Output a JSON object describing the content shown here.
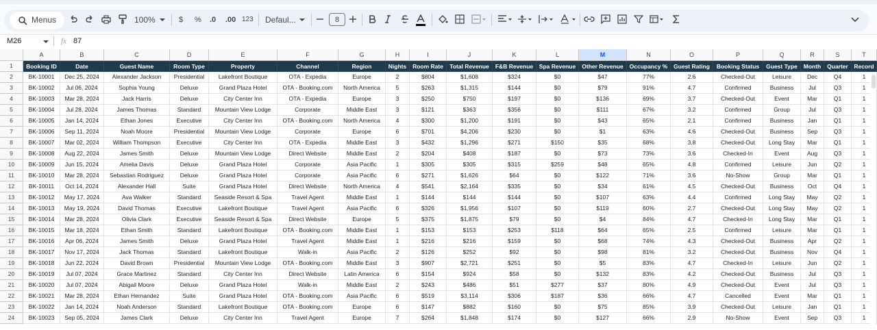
{
  "toolbar": {
    "search": "Menus",
    "zoom": "100%",
    "currency": "$",
    "percent": "%",
    "decrease_decimals": ".0",
    "increase_decimals": ".00",
    "number_format": "123",
    "font": "Defaul...",
    "font_size": "8"
  },
  "formula_bar": {
    "cell_ref": "M26",
    "fx": "fx",
    "formula": "87"
  },
  "sheet": {
    "selected_column": "M",
    "columns": [
      "A",
      "B",
      "C",
      "D",
      "E",
      "F",
      "G",
      "H",
      "I",
      "J",
      "K",
      "L",
      "M",
      "N",
      "O",
      "P",
      "Q",
      "R",
      "S",
      "T"
    ],
    "row_numbers": [
      "1",
      "2",
      "3",
      "4",
      "5",
      "6",
      "7",
      "8",
      "9",
      "10",
      "11",
      "12",
      "13",
      "14",
      "15",
      "16",
      "17",
      "18",
      "19",
      "20",
      "21",
      "22",
      "23",
      "24"
    ],
    "header": [
      "Booking ID",
      "Date",
      "Guest Name",
      "Room Type",
      "Property",
      "Channel",
      "Region",
      "Nights",
      "Room Rate",
      "Total Revenue",
      "F&B Revenue",
      "Spa Revenue",
      "Other Revenue",
      "Occupancy %",
      "Guest Rating",
      "Booking Status",
      "Guest Type",
      "Month",
      "Quarter",
      "Record"
    ],
    "rows": [
      [
        "BK-10001",
        "Dec 25, 2024",
        "Alexander Jackson",
        "Presidential",
        "Lakefront Boutique",
        "OTA - Expedia",
        "Europe",
        "2",
        "$804",
        "$1,608",
        "$324",
        "$0",
        "$47",
        "77%",
        "2.6",
        "Checked-Out",
        "Leisure",
        "Dec",
        "Q4",
        "1"
      ],
      [
        "BK-10002",
        "Jul 06, 2024",
        "Sophia Young",
        "Deluxe",
        "Grand Plaza Hotel",
        "OTA - Booking.com",
        "North America",
        "5",
        "$263",
        "$1,315",
        "$144",
        "$0",
        "$79",
        "91%",
        "4.7",
        "Confirmed",
        "Business",
        "Jul",
        "Q3",
        "1"
      ],
      [
        "BK-10003",
        "Mar 28, 2024",
        "Jack Harris",
        "Deluxe",
        "City Center Inn",
        "OTA - Expedia",
        "Europe",
        "3",
        "$250",
        "$750",
        "$197",
        "$0",
        "$136",
        "69%",
        "3.7",
        "Checked-Out",
        "Event",
        "Mar",
        "Q1",
        "1"
      ],
      [
        "BK-10004",
        "Jul 28, 2024",
        "James Thomas",
        "Standard",
        "Mountain View Lodge",
        "Corporate",
        "Middle East",
        "3",
        "$121",
        "$363",
        "$356",
        "$0",
        "$111",
        "67%",
        "3.2",
        "Confirmed",
        "Group",
        "Jul",
        "Q3",
        "1"
      ],
      [
        "BK-10005",
        "Jan 14, 2024",
        "Ethan Jones",
        "Executive",
        "City Center Inn",
        "OTA - Booking.com",
        "North America",
        "4",
        "$300",
        "$1,200",
        "$191",
        "$0",
        "$43",
        "65%",
        "2.1",
        "Confirmed",
        "Business",
        "Jan",
        "Q1",
        "1"
      ],
      [
        "BK-10006",
        "Sep 11, 2024",
        "Noah Moore",
        "Presidential",
        "Mountain View Lodge",
        "Corporate",
        "Europe",
        "6",
        "$701",
        "$4,206",
        "$230",
        "$0",
        "$1",
        "63%",
        "4.6",
        "Checked-Out",
        "Business",
        "Sep",
        "Q3",
        "1"
      ],
      [
        "BK-10007",
        "Mar 02, 2024",
        "William Thompson",
        "Executive",
        "City Center Inn",
        "OTA - Expedia",
        "Middle East",
        "3",
        "$432",
        "$1,296",
        "$271",
        "$150",
        "$35",
        "68%",
        "3.8",
        "Checked-Out",
        "Long Stay",
        "Mar",
        "Q1",
        "1"
      ],
      [
        "BK-10008",
        "Aug 22, 2024",
        "James Smith",
        "Deluxe",
        "Mountain View Lodge",
        "Direct Website",
        "Middle East",
        "2",
        "$204",
        "$408",
        "$187",
        "$0",
        "$73",
        "73%",
        "3.6",
        "Checked-In",
        "Event",
        "Aug",
        "Q3",
        "1"
      ],
      [
        "BK-10009",
        "Jun 15, 2024",
        "Amelia Davis",
        "Deluxe",
        "Grand Plaza Hotel",
        "Corporate",
        "Asia Pacific",
        "1",
        "$305",
        "$305",
        "$315",
        "$259",
        "$48",
        "65%",
        "4.8",
        "Confirmed",
        "Leisure",
        "Jun",
        "Q2",
        "1"
      ],
      [
        "BK-10010",
        "Mar 28, 2024",
        "Sebastian Rodriguez",
        "Deluxe",
        "Grand Plaza Hotel",
        "Corporate",
        "Asia Pacific",
        "6",
        "$271",
        "$1,626",
        "$64",
        "$0",
        "$122",
        "71%",
        "3.6",
        "No-Show",
        "Group",
        "Mar",
        "Q1",
        "1"
      ],
      [
        "BK-10011",
        "Oct 14, 2024",
        "Alexander Hall",
        "Suite",
        "Grand Plaza Hotel",
        "Direct Website",
        "North America",
        "4",
        "$541",
        "$2,164",
        "$335",
        "$0",
        "$34",
        "61%",
        "4.5",
        "Checked-Out",
        "Business",
        "Oct",
        "Q4",
        "1"
      ],
      [
        "BK-10012",
        "May 17, 2024",
        "Ava Walker",
        "Standard",
        "Seaside Resort & Spa",
        "Travel Agent",
        "Middle East",
        "1",
        "$144",
        "$144",
        "$144",
        "$0",
        "$107",
        "63%",
        "4.4",
        "Confirmed",
        "Long Stay",
        "May",
        "Q2",
        "1"
      ],
      [
        "BK-10013",
        "May 19, 2024",
        "David Thomas",
        "Executive",
        "Lakefront Boutique",
        "Travel Agent",
        "Asia Pacific",
        "6",
        "$326",
        "$1,956",
        "$107",
        "$0",
        "$119",
        "60%",
        "2.7",
        "Checked-Out",
        "Long Stay",
        "May",
        "Q2",
        "1"
      ],
      [
        "BK-10014",
        "Mar 28, 2024",
        "Olivia Clark",
        "Executive",
        "Seaside Resort & Spa",
        "Direct Website",
        "Europe",
        "5",
        "$375",
        "$1,875",
        "$79",
        "$0",
        "$4",
        "84%",
        "4.7",
        "Checked-In",
        "Long Stay",
        "Mar",
        "Q1",
        "1"
      ],
      [
        "BK-10015",
        "Mar 18, 2024",
        "Ethan Smith",
        "Standard",
        "Lakefront Boutique",
        "OTA - Booking.com",
        "Middle East",
        "1",
        "$153",
        "$153",
        "$253",
        "$118",
        "$64",
        "65%",
        "2.5",
        "Confirmed",
        "Leisure",
        "Mar",
        "Q1",
        "1"
      ],
      [
        "BK-10016",
        "Apr 06, 2024",
        "James Smith",
        "Deluxe",
        "Grand Plaza Hotel",
        "Travel Agent",
        "Middle East",
        "1",
        "$216",
        "$216",
        "$159",
        "$0",
        "$68",
        "74%",
        "4.3",
        "Checked-Out",
        "Business",
        "Apr",
        "Q2",
        "1"
      ],
      [
        "BK-10017",
        "Nov 17, 2024",
        "Jack Thomas",
        "Standard",
        "Lakefront Boutique",
        "Walk-in",
        "Asia Pacific",
        "2",
        "$126",
        "$252",
        "$92",
        "$0",
        "$98",
        "81%",
        "3.2",
        "Checked-Out",
        "Business",
        "Nov",
        "Q4",
        "1"
      ],
      [
        "BK-10018",
        "Jun 22, 2024",
        "David Brown",
        "Presidential",
        "Mountain View Lodge",
        "OTA - Booking.com",
        "Middle East",
        "3",
        "$907",
        "$2,721",
        "$251",
        "$0",
        "$5",
        "83%",
        "4.7",
        "Checked-In",
        "Leisure",
        "Jun",
        "Q2",
        "1"
      ],
      [
        "BK-10019",
        "Jul 07, 2024",
        "Grace Martinez",
        "Standard",
        "City Center Inn",
        "Direct Website",
        "Latin America",
        "6",
        "$154",
        "$924",
        "$58",
        "$0",
        "$132",
        "83%",
        "4.2",
        "Checked-Out",
        "Business",
        "Jul",
        "Q3",
        "1"
      ],
      [
        "BK-10020",
        "Jul 07, 2024",
        "Abigail Moore",
        "Deluxe",
        "Grand Plaza Hotel",
        "Walk-in",
        "Middle East",
        "2",
        "$243",
        "$486",
        "$51",
        "$277",
        "$37",
        "80%",
        "4.9",
        "Checked-Out",
        "Event",
        "Jul",
        "Q3",
        "1"
      ],
      [
        "BK-10021",
        "Mar 28, 2024",
        "Ethan Hernandez",
        "Suite",
        "Grand Plaza Hotel",
        "OTA - Booking.com",
        "Asia Pacific",
        "6",
        "$519",
        "$3,114",
        "$306",
        "$187",
        "$36",
        "66%",
        "4.7",
        "Cancelled",
        "Event",
        "Mar",
        "Q1",
        "1"
      ],
      [
        "BK-10022",
        "Jan 14, 2024",
        "Noah Anderson",
        "Standard",
        "Lakefront Boutique",
        "OTA - Booking.com",
        "Europe",
        "6",
        "$147",
        "$882",
        "$160",
        "$0",
        "$75",
        "85%",
        "3.9",
        "Checked-Out",
        "Leisure",
        "Jan",
        "Q1",
        "1"
      ],
      [
        "BK-10023",
        "Sep 05, 2024",
        "James Clark",
        "Deluxe",
        "City Center Inn",
        "Travel Agent",
        "Europe",
        "7",
        "$264",
        "$1,848",
        "$174",
        "$0",
        "$127",
        "66%",
        "2.9",
        "No-Show",
        "Event",
        "Sep",
        "Q3",
        "1"
      ]
    ]
  }
}
